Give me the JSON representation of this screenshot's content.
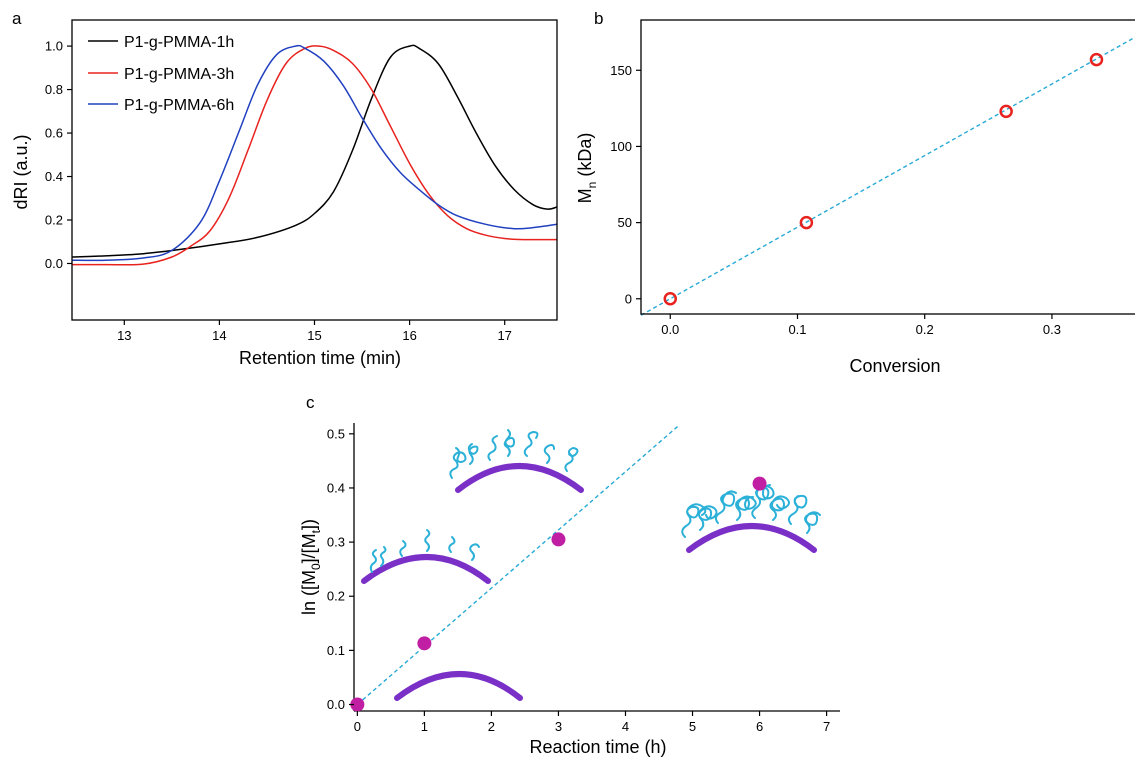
{
  "chart_data": [
    {
      "panel": "a",
      "type": "line",
      "xlabel": "Retention time (min)",
      "ylabel": "dRI (a.u.)",
      "xlim": [
        12.45,
        17.55
      ],
      "ylim": [
        -0.26,
        1.12
      ],
      "xticks": [
        13,
        14,
        15,
        16,
        17
      ],
      "yticks": [
        0.0,
        0.2,
        0.4,
        0.6,
        0.8,
        1.0
      ],
      "legend_position": "top-left",
      "series": [
        {
          "name": "P1-g-PMMA-1h",
          "color": "#000000",
          "x": [
            12.45,
            12.8,
            13.2,
            13.6,
            14.0,
            14.4,
            14.8,
            15.0,
            15.2,
            15.4,
            15.6,
            15.8,
            16.0,
            16.1,
            16.3,
            16.5,
            16.7,
            16.9,
            17.1,
            17.3,
            17.45,
            17.55
          ],
          "y": [
            0.03,
            0.035,
            0.045,
            0.065,
            0.09,
            0.12,
            0.175,
            0.23,
            0.33,
            0.52,
            0.76,
            0.95,
            1.0,
            0.99,
            0.92,
            0.77,
            0.6,
            0.45,
            0.34,
            0.27,
            0.25,
            0.26
          ]
        },
        {
          "name": "P1-g-PMMA-3h",
          "color": "#e8231f",
          "x": [
            12.45,
            12.8,
            13.2,
            13.5,
            13.7,
            13.9,
            14.1,
            14.3,
            14.5,
            14.7,
            14.9,
            15.05,
            15.2,
            15.4,
            15.6,
            15.8,
            16.0,
            16.2,
            16.4,
            16.6,
            16.8,
            17.0,
            17.2,
            17.55
          ],
          "y": [
            -0.005,
            -0.005,
            -0.003,
            0.03,
            0.08,
            0.15,
            0.3,
            0.52,
            0.75,
            0.92,
            0.99,
            1.0,
            0.98,
            0.92,
            0.8,
            0.63,
            0.46,
            0.32,
            0.22,
            0.16,
            0.13,
            0.115,
            0.11,
            0.11
          ]
        },
        {
          "name": "P1-g-PMMA-6h",
          "color": "#2040c0",
          "x": [
            12.45,
            12.8,
            13.2,
            13.5,
            13.8,
            14.0,
            14.2,
            14.4,
            14.6,
            14.8,
            14.9,
            15.1,
            15.3,
            15.5,
            15.7,
            15.9,
            16.1,
            16.3,
            16.5,
            16.8,
            17.1,
            17.3,
            17.55
          ],
          "y": [
            0.015,
            0.015,
            0.025,
            0.06,
            0.19,
            0.38,
            0.6,
            0.82,
            0.96,
            1.0,
            0.99,
            0.93,
            0.82,
            0.67,
            0.53,
            0.42,
            0.34,
            0.27,
            0.22,
            0.18,
            0.16,
            0.165,
            0.18
          ]
        }
      ]
    },
    {
      "panel": "b",
      "type": "scatter",
      "xlabel": "Conversion",
      "ylabel": "M",
      "ylabel_sub": "n",
      "ylabel_suffix": " (kDa)",
      "xlim": [
        -0.023,
        0.37
      ],
      "ylim": [
        -10,
        183
      ],
      "xticks": [
        0.0,
        0.1,
        0.2,
        0.3
      ],
      "yticks": [
        0,
        50,
        100,
        150
      ],
      "points": {
        "x": [
          0.0,
          0.107,
          0.264,
          0.335
        ],
        "y": [
          0,
          50,
          123,
          157
        ],
        "color": "#e8231f"
      },
      "fit_line": {
        "slope": 470,
        "intercept": 0,
        "color": "#27aad6",
        "style": "dashed"
      }
    },
    {
      "panel": "c",
      "type": "scatter",
      "xlabel": "Reaction time (h)",
      "ylabel_parts": [
        "ln ([M",
        "0",
        "]/[M",
        "t",
        "])"
      ],
      "xlim": [
        -0.05,
        7.2
      ],
      "ylim": [
        -0.012,
        0.52
      ],
      "xticks": [
        0,
        1,
        2,
        3,
        4,
        5,
        6,
        7
      ],
      "yticks": [
        0.0,
        0.1,
        0.2,
        0.3,
        0.4,
        0.5
      ],
      "points": {
        "x": [
          0,
          1,
          3,
          6
        ],
        "y": [
          0.0,
          0.113,
          0.305,
          0.408
        ],
        "color": "#c01ea3"
      },
      "fit_line": {
        "slope": 0.1075,
        "intercept": 0,
        "x_end": 4.8,
        "color": "#27aad6",
        "style": "dashed"
      }
    }
  ],
  "panels": {
    "a": "a",
    "b": "b",
    "c": "c"
  },
  "colors": {
    "arc": "#7a2fc7",
    "brush": "#2bb0d8"
  }
}
